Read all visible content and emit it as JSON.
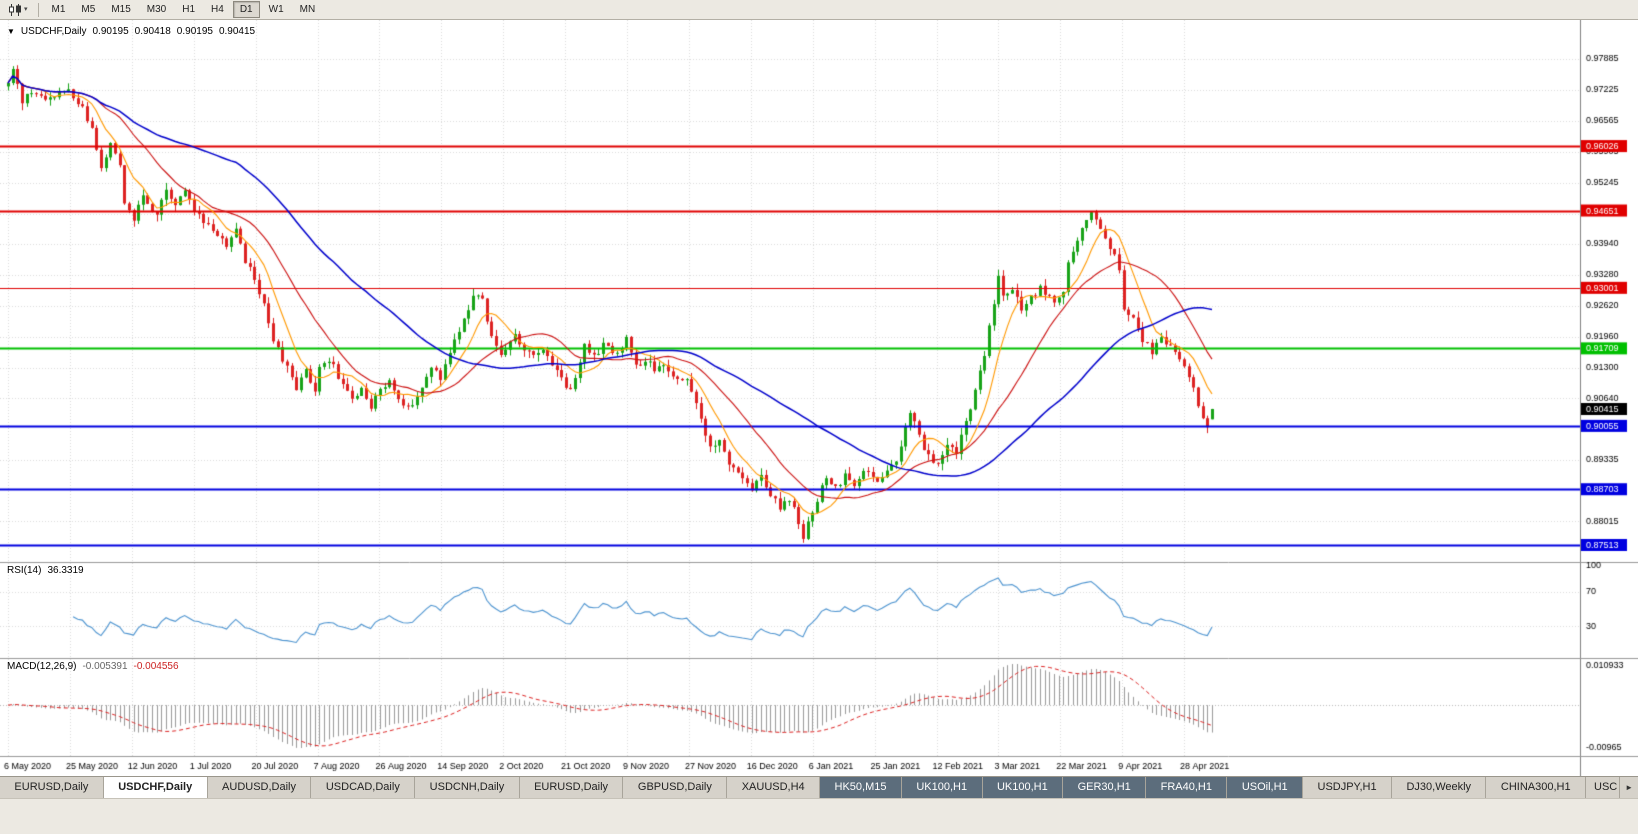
{
  "toolbar": {
    "chart_type_dropdown_icon": "▾",
    "timeframes": [
      "M1",
      "M5",
      "M15",
      "M30",
      "H1",
      "H4",
      "D1",
      "W1",
      "MN"
    ],
    "active_timeframe": "D1"
  },
  "chart_header": {
    "collapse_icon": "▼",
    "symbol_title": "USDCHF,Daily",
    "open": "0.90195",
    "high": "0.90418",
    "low": "0.90195",
    "close": "0.90415"
  },
  "rsi_panel": {
    "name": "RSI(14)",
    "value": "36.3319",
    "axis_labels": [
      "100",
      "70",
      "30"
    ],
    "levels": [
      70,
      30
    ],
    "line_color": "#4d94d0"
  },
  "macd_panel": {
    "name": "MACD(12,26,9)",
    "value_main": "-0.005391",
    "value_signal": "-0.004556",
    "axis_top": "0.010933",
    "axis_bottom": "-0.00965",
    "histogram_color": "#9a9a9a",
    "signal_color": "#dd2222"
  },
  "bottom_tabs": {
    "scroll_right_icon": "►",
    "tabs": [
      {
        "label": "EURUSD,Daily",
        "state": "normal"
      },
      {
        "label": "USDCHF,Daily",
        "state": "active"
      },
      {
        "label": "AUDUSD,Daily",
        "state": "normal"
      },
      {
        "label": "USDCAD,Daily",
        "state": "normal"
      },
      {
        "label": "USDCNH,Daily",
        "state": "normal"
      },
      {
        "label": "EURUSD,Daily",
        "state": "normal"
      },
      {
        "label": "GBPUSD,Daily",
        "state": "normal"
      },
      {
        "label": "XAUUSD,H4",
        "state": "normal"
      },
      {
        "label": "HK50,M15",
        "state": "dark"
      },
      {
        "label": "UK100,H1",
        "state": "dark"
      },
      {
        "label": "UK100,H1",
        "state": "dark"
      },
      {
        "label": "GER30,H1",
        "state": "dark"
      },
      {
        "label": "FRA40,H1",
        "state": "dark"
      },
      {
        "label": "USOil,H1",
        "state": "dark"
      },
      {
        "label": "USDJPY,H1",
        "state": "normal"
      },
      {
        "label": "DJ30,Weekly",
        "state": "normal"
      },
      {
        "label": "CHINA300,H1",
        "state": "normal"
      },
      {
        "label": "USC",
        "state": "normal"
      }
    ]
  },
  "chart_data": {
    "type": "candlestick",
    "symbol": "USDCHF",
    "timeframe": "Daily",
    "num_candles": 260,
    "colors": {
      "up": "#18a318",
      "down": "#dd2222",
      "ma_fast": "#ff9900",
      "ma_mid": "#cc1111",
      "ma_slow": "#0000cc",
      "grid": "#dadada",
      "separator": "#989898",
      "axis_text": "#000000"
    },
    "moving_average_periods": {
      "fast": 8,
      "mid": 20,
      "slow": 50
    },
    "price_scale": {
      "top": 0.98717,
      "bottom": 0.8715
    },
    "y_axis_ticks": [
      "0.97885",
      "0.97225",
      "0.96565",
      "0.95905",
      "0.95245",
      "0.94585",
      "0.93940",
      "0.93280",
      "0.92620",
      "0.91960",
      "0.91300",
      "0.90640",
      "0.89335",
      "0.88015"
    ],
    "x_axis_labels": [
      "6 May 2020",
      "25 May 2020",
      "12 Jun 2020",
      "1 Jul 2020",
      "20 Jul 2020",
      "7 Aug 2020",
      "26 Aug 2020",
      "14 Sep 2020",
      "2 Oct 2020",
      "21 Oct 2020",
      "9 Nov 2020",
      "27 Nov 2020",
      "16 Dec 2020",
      "6 Jan 2021",
      "25 Jan 2021",
      "12 Feb 2021",
      "3 Mar 2021",
      "22 Mar 2021",
      "9 Apr 2021",
      "28 Apr 2021"
    ],
    "horizontal_lines": [
      {
        "price": 0.96026,
        "label": "0.96026",
        "color": "#e00000",
        "width": 2
      },
      {
        "price": 0.94651,
        "label": "0.94651",
        "color": "#e00000",
        "width": 2
      },
      {
        "price": 0.93001,
        "label": "0.93001",
        "color": "#e00000",
        "width": 1
      },
      {
        "price": 0.91709,
        "label": "0.91709",
        "color": "#00c000",
        "width": 2
      },
      {
        "price": 0.90055,
        "label": "0.90055",
        "color": "#0000e0",
        "width": 2
      },
      {
        "price": 0.88703,
        "label": "0.88703",
        "color": "#0000e0",
        "width": 2
      },
      {
        "price": 0.87513,
        "label": "0.87513",
        "color": "#0000e0",
        "width": 2
      }
    ],
    "current_price": {
      "value": 0.90415,
      "label": "0.90415",
      "box_color": "#000000"
    },
    "last_candle_ohlc": [
      0.90195,
      0.90418,
      0.90195,
      0.90415
    ],
    "price_path_anchors": [
      [
        0,
        0.973
      ],
      [
        1,
        0.976
      ],
      [
        3,
        0.9695
      ],
      [
        5,
        0.972
      ],
      [
        8,
        0.97
      ],
      [
        12,
        0.9725
      ],
      [
        15,
        0.97
      ],
      [
        18,
        0.964
      ],
      [
        20,
        0.956
      ],
      [
        22,
        0.961
      ],
      [
        24,
        0.956
      ],
      [
        25,
        0.948
      ],
      [
        27,
        0.9445
      ],
      [
        29,
        0.95
      ],
      [
        32,
        0.9455
      ],
      [
        34,
        0.951
      ],
      [
        36,
        0.948
      ],
      [
        38,
        0.951
      ],
      [
        40,
        0.9465
      ],
      [
        43,
        0.943
      ],
      [
        47,
        0.939
      ],
      [
        49,
        0.942
      ],
      [
        51,
        0.936
      ],
      [
        53,
        0.932
      ],
      [
        55,
        0.926
      ],
      [
        57,
        0.919
      ],
      [
        60,
        0.913
      ],
      [
        62,
        0.9085
      ],
      [
        64,
        0.912
      ],
      [
        66,
        0.908
      ],
      [
        67,
        0.913
      ],
      [
        69,
        0.915
      ],
      [
        71,
        0.911
      ],
      [
        74,
        0.906
      ],
      [
        76,
        0.909
      ],
      [
        78,
        0.905
      ],
      [
        80,
        0.908
      ],
      [
        82,
        0.911
      ],
      [
        84,
        0.906
      ],
      [
        86,
        0.904
      ],
      [
        89,
        0.909
      ],
      [
        91,
        0.913
      ],
      [
        93,
        0.911
      ],
      [
        94,
        0.914
      ],
      [
        96,
        0.919
      ],
      [
        98,
        0.923
      ],
      [
        100,
        0.929
      ],
      [
        102,
        0.927
      ],
      [
        104,
        0.919
      ],
      [
        106,
        0.915
      ],
      [
        107,
        0.916
      ],
      [
        109,
        0.92
      ],
      [
        111,
        0.917
      ],
      [
        113,
        0.915
      ],
      [
        115,
        0.916
      ],
      [
        118,
        0.913
      ],
      [
        120,
        0.908
      ],
      [
        122,
        0.91
      ],
      [
        124,
        0.918
      ],
      [
        126,
        0.915
      ],
      [
        128,
        0.918
      ],
      [
        131,
        0.916
      ],
      [
        133,
        0.919
      ],
      [
        135,
        0.913
      ],
      [
        137,
        0.915
      ],
      [
        139,
        0.912
      ],
      [
        141,
        0.913
      ],
      [
        144,
        0.91
      ],
      [
        146,
        0.911
      ],
      [
        147,
        0.908
      ],
      [
        149,
        0.902
      ],
      [
        151,
        0.896
      ],
      [
        153,
        0.898
      ],
      [
        155,
        0.893
      ],
      [
        157,
        0.89
      ],
      [
        160,
        0.887
      ],
      [
        162,
        0.89
      ],
      [
        164,
        0.886
      ],
      [
        166,
        0.883
      ],
      [
        168,
        0.885
      ],
      [
        170,
        0.88
      ],
      [
        171,
        0.877
      ],
      [
        174,
        0.885
      ],
      [
        176,
        0.89
      ],
      [
        178,
        0.887
      ],
      [
        180,
        0.89
      ],
      [
        182,
        0.888
      ],
      [
        184,
        0.891
      ],
      [
        187,
        0.888
      ],
      [
        189,
        0.891
      ],
      [
        191,
        0.893
      ],
      [
        193,
        0.9
      ],
      [
        194,
        0.904
      ],
      [
        195,
        0.901
      ],
      [
        197,
        0.896
      ],
      [
        199,
        0.893
      ],
      [
        200,
        0.893
      ],
      [
        202,
        0.897
      ],
      [
        204,
        0.895
      ],
      [
        206,
        0.901
      ],
      [
        208,
        0.908
      ],
      [
        210,
        0.916
      ],
      [
        212,
        0.927
      ],
      [
        213,
        0.932
      ],
      [
        214,
        0.928
      ],
      [
        216,
        0.93
      ],
      [
        218,
        0.925
      ],
      [
        220,
        0.928
      ],
      [
        222,
        0.93
      ],
      [
        225,
        0.927
      ],
      [
        227,
        0.929
      ],
      [
        228,
        0.935
      ],
      [
        230,
        0.94
      ],
      [
        232,
        0.944
      ],
      [
        233,
        0.946
      ],
      [
        235,
        0.943
      ],
      [
        237,
        0.939
      ],
      [
        239,
        0.934
      ],
      [
        240,
        0.926
      ],
      [
        242,
        0.923
      ],
      [
        244,
        0.919
      ],
      [
        246,
        0.916
      ],
      [
        248,
        0.92
      ],
      [
        251,
        0.916
      ],
      [
        253,
        0.913
      ],
      [
        255,
        0.909
      ],
      [
        257,
        0.902
      ],
      [
        258,
        0.9
      ],
      [
        259,
        0.9042
      ]
    ]
  }
}
